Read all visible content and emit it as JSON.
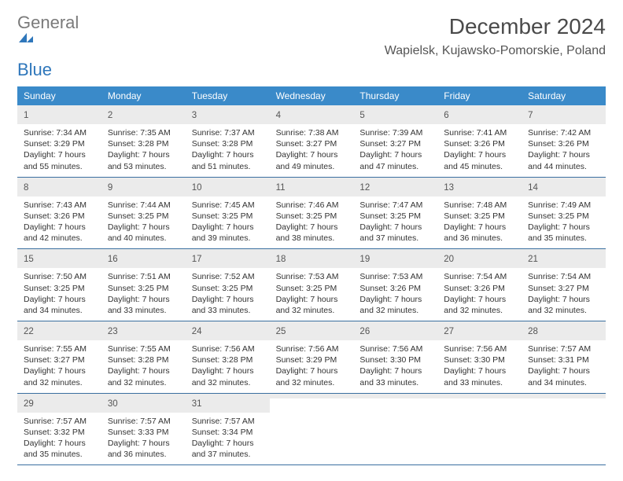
{
  "brand": {
    "text1": "General",
    "text2": "Blue",
    "color1": "#7a7a7a",
    "color2": "#2f77bb",
    "mark_color": "#2f77bb"
  },
  "title": "December 2024",
  "location": "Wapielsk, Kujawsko-Pomorskie, Poland",
  "header_bg": "#3a8ac9",
  "header_fg": "#ffffff",
  "daynum_bg": "#ebebeb",
  "rule_color": "#3a6fa0",
  "daynames": [
    "Sunday",
    "Monday",
    "Tuesday",
    "Wednesday",
    "Thursday",
    "Friday",
    "Saturday"
  ],
  "weeks": [
    [
      {
        "n": "1",
        "sunrise": "Sunrise: 7:34 AM",
        "sunset": "Sunset: 3:29 PM",
        "day": "Daylight: 7 hours and 55 minutes."
      },
      {
        "n": "2",
        "sunrise": "Sunrise: 7:35 AM",
        "sunset": "Sunset: 3:28 PM",
        "day": "Daylight: 7 hours and 53 minutes."
      },
      {
        "n": "3",
        "sunrise": "Sunrise: 7:37 AM",
        "sunset": "Sunset: 3:28 PM",
        "day": "Daylight: 7 hours and 51 minutes."
      },
      {
        "n": "4",
        "sunrise": "Sunrise: 7:38 AM",
        "sunset": "Sunset: 3:27 PM",
        "day": "Daylight: 7 hours and 49 minutes."
      },
      {
        "n": "5",
        "sunrise": "Sunrise: 7:39 AM",
        "sunset": "Sunset: 3:27 PM",
        "day": "Daylight: 7 hours and 47 minutes."
      },
      {
        "n": "6",
        "sunrise": "Sunrise: 7:41 AM",
        "sunset": "Sunset: 3:26 PM",
        "day": "Daylight: 7 hours and 45 minutes."
      },
      {
        "n": "7",
        "sunrise": "Sunrise: 7:42 AM",
        "sunset": "Sunset: 3:26 PM",
        "day": "Daylight: 7 hours and 44 minutes."
      }
    ],
    [
      {
        "n": "8",
        "sunrise": "Sunrise: 7:43 AM",
        "sunset": "Sunset: 3:26 PM",
        "day": "Daylight: 7 hours and 42 minutes."
      },
      {
        "n": "9",
        "sunrise": "Sunrise: 7:44 AM",
        "sunset": "Sunset: 3:25 PM",
        "day": "Daylight: 7 hours and 40 minutes."
      },
      {
        "n": "10",
        "sunrise": "Sunrise: 7:45 AM",
        "sunset": "Sunset: 3:25 PM",
        "day": "Daylight: 7 hours and 39 minutes."
      },
      {
        "n": "11",
        "sunrise": "Sunrise: 7:46 AM",
        "sunset": "Sunset: 3:25 PM",
        "day": "Daylight: 7 hours and 38 minutes."
      },
      {
        "n": "12",
        "sunrise": "Sunrise: 7:47 AM",
        "sunset": "Sunset: 3:25 PM",
        "day": "Daylight: 7 hours and 37 minutes."
      },
      {
        "n": "13",
        "sunrise": "Sunrise: 7:48 AM",
        "sunset": "Sunset: 3:25 PM",
        "day": "Daylight: 7 hours and 36 minutes."
      },
      {
        "n": "14",
        "sunrise": "Sunrise: 7:49 AM",
        "sunset": "Sunset: 3:25 PM",
        "day": "Daylight: 7 hours and 35 minutes."
      }
    ],
    [
      {
        "n": "15",
        "sunrise": "Sunrise: 7:50 AM",
        "sunset": "Sunset: 3:25 PM",
        "day": "Daylight: 7 hours and 34 minutes."
      },
      {
        "n": "16",
        "sunrise": "Sunrise: 7:51 AM",
        "sunset": "Sunset: 3:25 PM",
        "day": "Daylight: 7 hours and 33 minutes."
      },
      {
        "n": "17",
        "sunrise": "Sunrise: 7:52 AM",
        "sunset": "Sunset: 3:25 PM",
        "day": "Daylight: 7 hours and 33 minutes."
      },
      {
        "n": "18",
        "sunrise": "Sunrise: 7:53 AM",
        "sunset": "Sunset: 3:25 PM",
        "day": "Daylight: 7 hours and 32 minutes."
      },
      {
        "n": "19",
        "sunrise": "Sunrise: 7:53 AM",
        "sunset": "Sunset: 3:26 PM",
        "day": "Daylight: 7 hours and 32 minutes."
      },
      {
        "n": "20",
        "sunrise": "Sunrise: 7:54 AM",
        "sunset": "Sunset: 3:26 PM",
        "day": "Daylight: 7 hours and 32 minutes."
      },
      {
        "n": "21",
        "sunrise": "Sunrise: 7:54 AM",
        "sunset": "Sunset: 3:27 PM",
        "day": "Daylight: 7 hours and 32 minutes."
      }
    ],
    [
      {
        "n": "22",
        "sunrise": "Sunrise: 7:55 AM",
        "sunset": "Sunset: 3:27 PM",
        "day": "Daylight: 7 hours and 32 minutes."
      },
      {
        "n": "23",
        "sunrise": "Sunrise: 7:55 AM",
        "sunset": "Sunset: 3:28 PM",
        "day": "Daylight: 7 hours and 32 minutes."
      },
      {
        "n": "24",
        "sunrise": "Sunrise: 7:56 AM",
        "sunset": "Sunset: 3:28 PM",
        "day": "Daylight: 7 hours and 32 minutes."
      },
      {
        "n": "25",
        "sunrise": "Sunrise: 7:56 AM",
        "sunset": "Sunset: 3:29 PM",
        "day": "Daylight: 7 hours and 32 minutes."
      },
      {
        "n": "26",
        "sunrise": "Sunrise: 7:56 AM",
        "sunset": "Sunset: 3:30 PM",
        "day": "Daylight: 7 hours and 33 minutes."
      },
      {
        "n": "27",
        "sunrise": "Sunrise: 7:56 AM",
        "sunset": "Sunset: 3:30 PM",
        "day": "Daylight: 7 hours and 33 minutes."
      },
      {
        "n": "28",
        "sunrise": "Sunrise: 7:57 AM",
        "sunset": "Sunset: 3:31 PM",
        "day": "Daylight: 7 hours and 34 minutes."
      }
    ],
    [
      {
        "n": "29",
        "sunrise": "Sunrise: 7:57 AM",
        "sunset": "Sunset: 3:32 PM",
        "day": "Daylight: 7 hours and 35 minutes."
      },
      {
        "n": "30",
        "sunrise": "Sunrise: 7:57 AM",
        "sunset": "Sunset: 3:33 PM",
        "day": "Daylight: 7 hours and 36 minutes."
      },
      {
        "n": "31",
        "sunrise": "Sunrise: 7:57 AM",
        "sunset": "Sunset: 3:34 PM",
        "day": "Daylight: 7 hours and 37 minutes."
      },
      null,
      null,
      null,
      null
    ]
  ]
}
